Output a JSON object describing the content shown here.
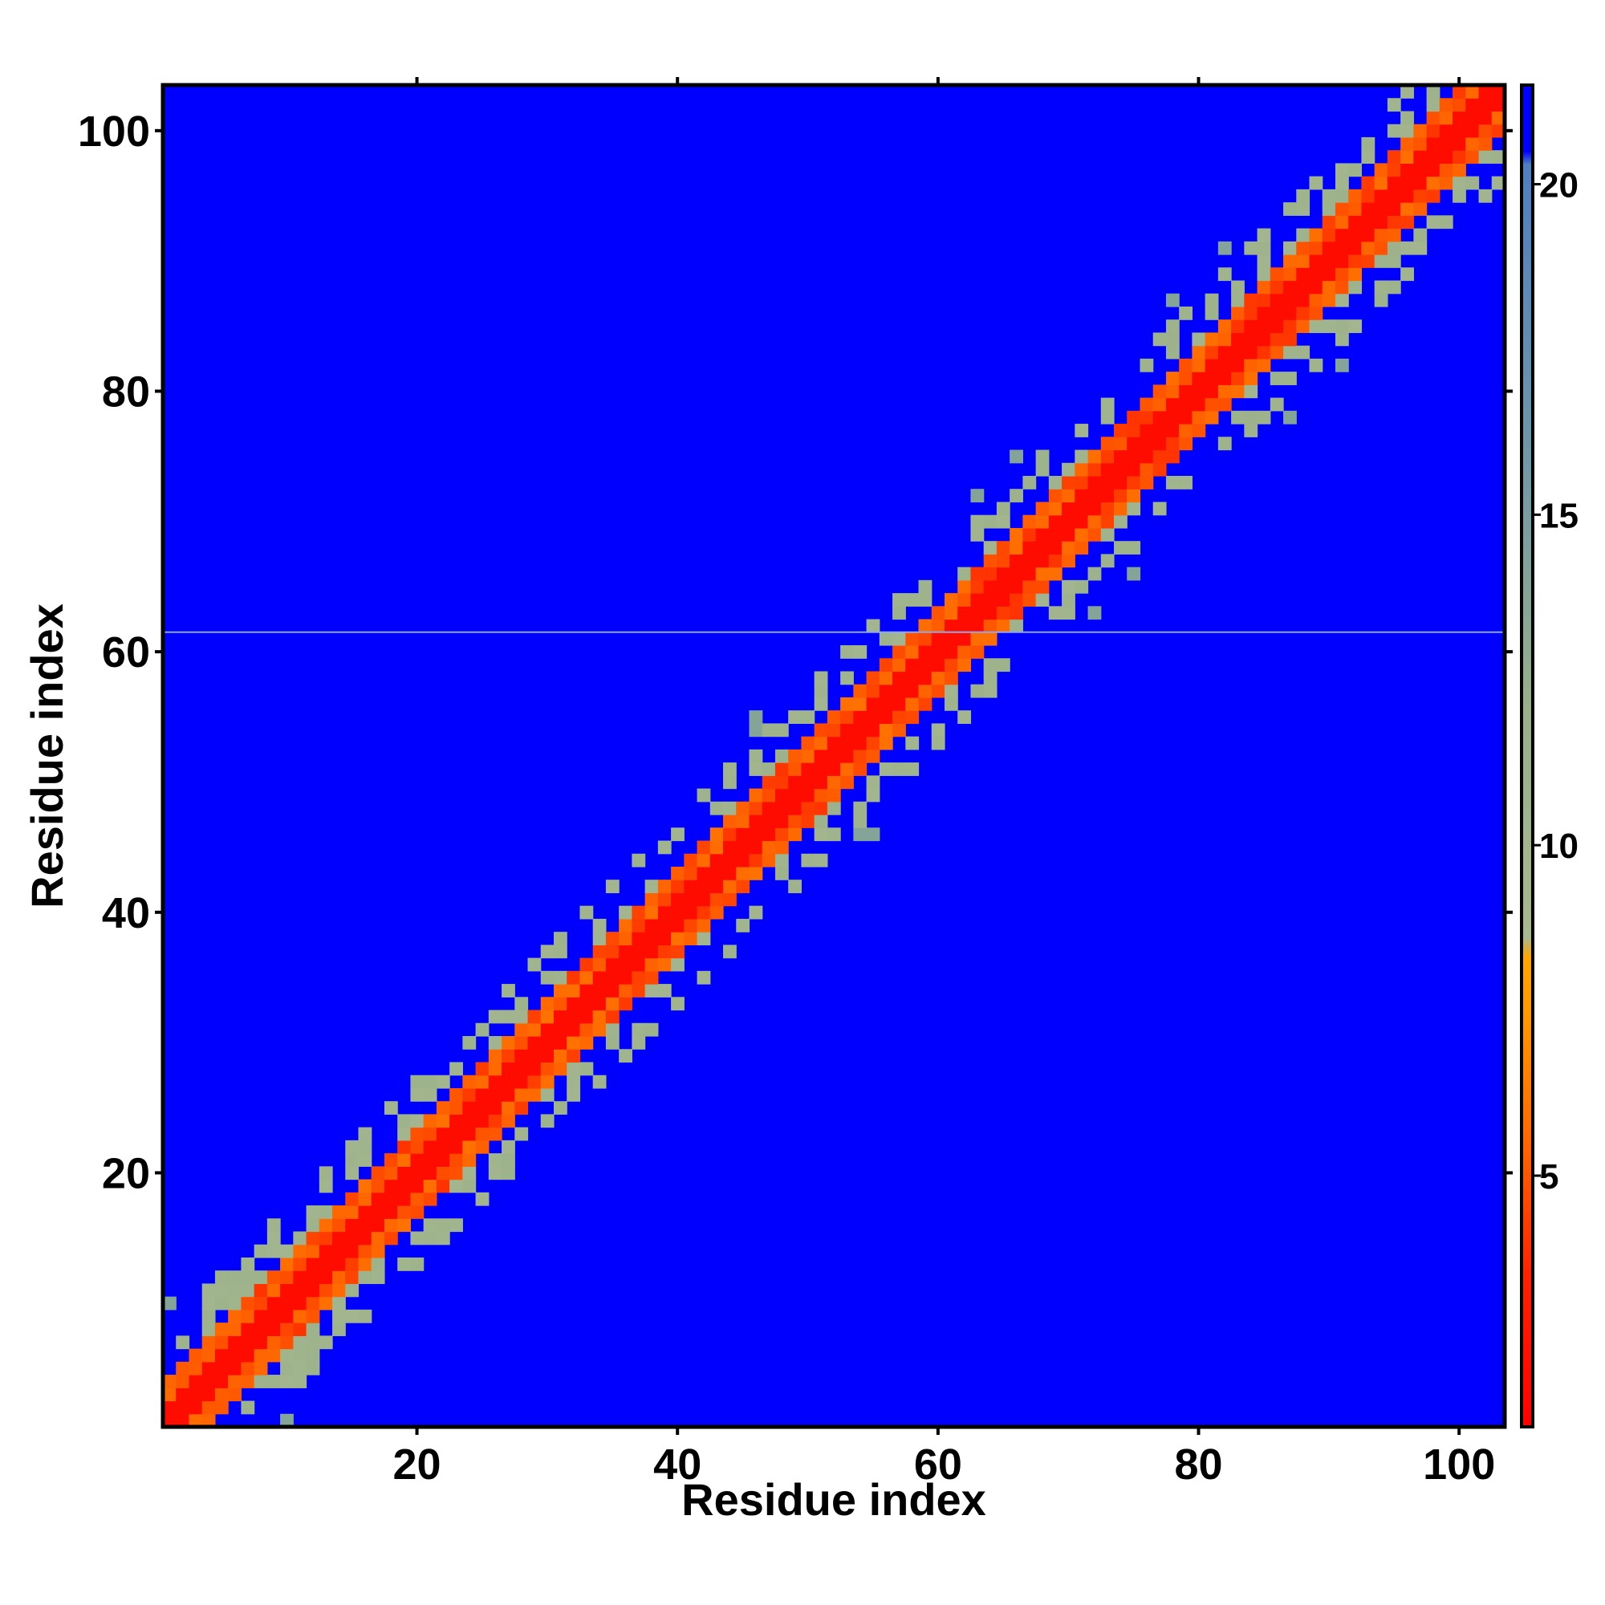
{
  "chart_data": {
    "type": "heatmap",
    "title": "",
    "xlabel": "Residue index",
    "ylabel": "Residue index",
    "n_residues": 103,
    "xlim": [
      0.5,
      103.5
    ],
    "ylim": [
      0.5,
      103.5
    ],
    "x_ticks": [
      20,
      40,
      60,
      80,
      100
    ],
    "y_ticks": [
      20,
      40,
      60,
      80,
      100
    ],
    "grid": false,
    "description_of_values": "symmetric residue-residue distance map; values along the diagonal are near 0 and increase with |i-j|; off-band cells saturate at the maximum",
    "bands": [
      {
        "max_offset": 1,
        "value": 2
      },
      {
        "max_offset": 3,
        "value": 6
      },
      {
        "max_offset": 7,
        "value": 11
      },
      {
        "max_offset": 9,
        "value": 14
      }
    ],
    "background_value": 21.5,
    "colorbar": {
      "range": [
        1.2,
        21.5
      ],
      "ticks": [
        5,
        10,
        15,
        20
      ],
      "stops": [
        {
          "value": 1.2,
          "color": "#ff0000"
        },
        {
          "value": 3.5,
          "color": "#ff2200"
        },
        {
          "value": 5.5,
          "color": "#ff6600"
        },
        {
          "value": 7.5,
          "color": "#ff9900"
        },
        {
          "value": 8.3,
          "color": "#ffa500"
        },
        {
          "value": 8.6,
          "color": "#a8b890"
        },
        {
          "value": 12.0,
          "color": "#98b08a"
        },
        {
          "value": 16.0,
          "color": "#6f97a8"
        },
        {
          "value": 20.3,
          "color": "#4f7fc0"
        },
        {
          "value": 20.5,
          "color": "#0000ff"
        },
        {
          "value": 21.5,
          "color": "#0000ff"
        }
      ]
    },
    "highlight_row": 61.5,
    "highlight_color": "#8ea8e8"
  }
}
